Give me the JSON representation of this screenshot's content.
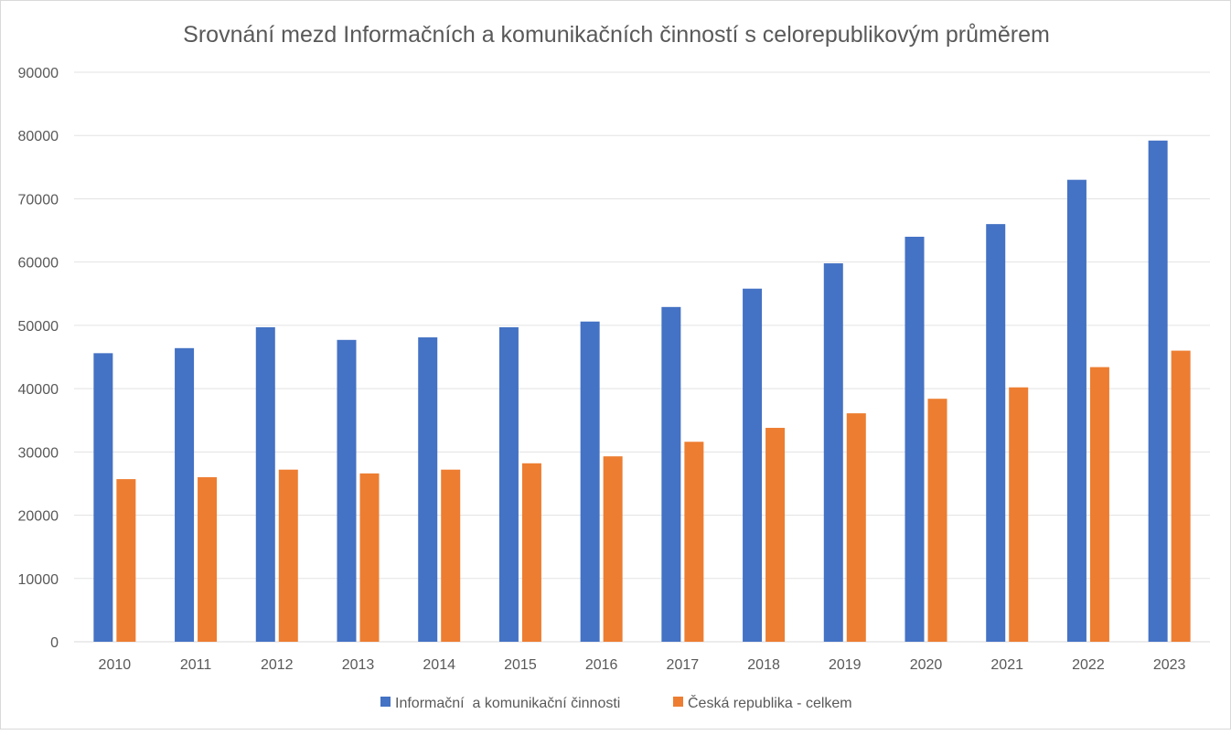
{
  "chart_data": {
    "type": "bar",
    "title": "Srovnání mezd Informačních a komunikačních činností s celorepublikovým průměrem",
    "xlabel": "",
    "ylabel": "",
    "ylim": [
      0,
      90000
    ],
    "yticks": [
      "0",
      "10000",
      "20000",
      "30000",
      "40000",
      "50000",
      "60000",
      "70000",
      "80000",
      "90000"
    ],
    "grid": true,
    "legend_position": "bottom",
    "categories": [
      "2010",
      "2011",
      "2012",
      "2013",
      "2014",
      "2015",
      "2016",
      "2017",
      "2018",
      "2019",
      "2020",
      "2021",
      "2022",
      "2023"
    ],
    "series": [
      {
        "name": "Informační  a komunikační činnosti",
        "color": "#4472c4",
        "values": [
          45600,
          46400,
          49700,
          47700,
          48100,
          49700,
          50600,
          52900,
          55800,
          59800,
          64000,
          66000,
          73000,
          79200
        ]
      },
      {
        "name": "Česká republika - celkem",
        "color": "#ed7d31",
        "values": [
          25700,
          26000,
          27200,
          26600,
          27200,
          28200,
          29300,
          31600,
          33800,
          36100,
          38400,
          40200,
          43400,
          46000
        ]
      }
    ]
  }
}
